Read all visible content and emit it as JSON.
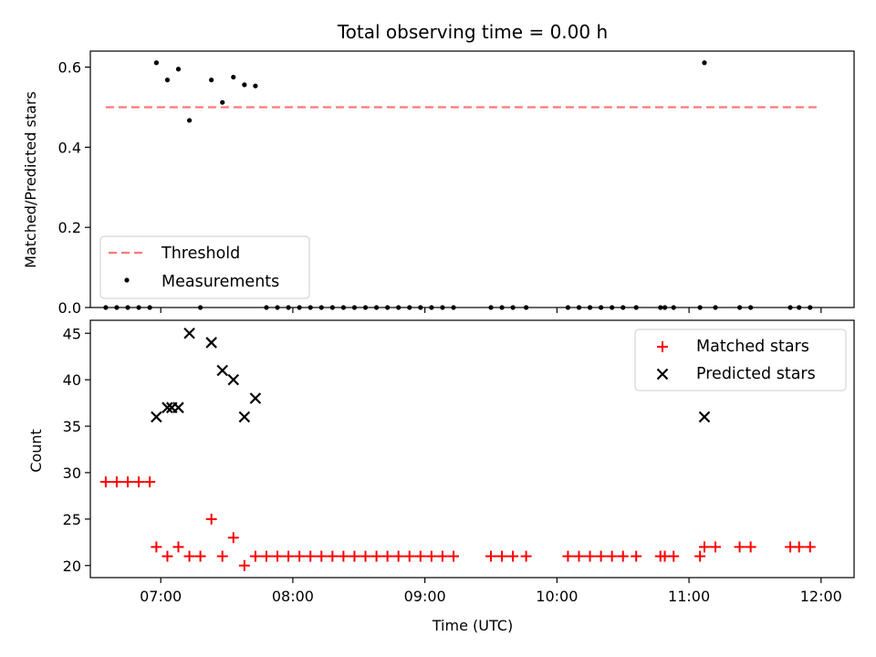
{
  "chart_data": [
    {
      "type": "scatter",
      "title": "Total observing time = 0.00 h",
      "xlabel": "",
      "ylabel": "Matched/Predicted stars",
      "xlim": [
        "06:28",
        "12:15"
      ],
      "ylim": [
        0,
        0.64
      ],
      "yticks": [
        0.0,
        0.2,
        0.4,
        0.6
      ],
      "ytick_labels": [
        "0.0",
        "0.2",
        "0.4",
        "0.6"
      ],
      "legend_position": "lower-left",
      "threshold": {
        "name": "Threshold",
        "value": 0.5,
        "x_start": "06:35",
        "x_end": "12:00",
        "color": "#ff7777",
        "style": "dashed"
      },
      "series": [
        {
          "name": "Measurements",
          "color": "#000000",
          "marker": "dot",
          "points": [
            {
              "x": "06:35",
              "y": 0.0
            },
            {
              "x": "06:40",
              "y": 0.0
            },
            {
              "x": "06:45",
              "y": 0.0
            },
            {
              "x": "06:50",
              "y": 0.0
            },
            {
              "x": "06:55",
              "y": 0.0
            },
            {
              "x": "06:58",
              "y": 0.611
            },
            {
              "x": "07:03",
              "y": 0.568
            },
            {
              "x": "07:08",
              "y": 0.595
            },
            {
              "x": "07:13",
              "y": 0.467
            },
            {
              "x": "07:18",
              "y": 0.0
            },
            {
              "x": "07:23",
              "y": 0.568
            },
            {
              "x": "07:28",
              "y": 0.512
            },
            {
              "x": "07:33",
              "y": 0.575
            },
            {
              "x": "07:38",
              "y": 0.556
            },
            {
              "x": "07:43",
              "y": 0.553
            },
            {
              "x": "07:48",
              "y": 0.0
            },
            {
              "x": "07:53",
              "y": 0.0
            },
            {
              "x": "07:58",
              "y": 0.0
            },
            {
              "x": "08:03",
              "y": 0.0
            },
            {
              "x": "08:08",
              "y": 0.0
            },
            {
              "x": "08:13",
              "y": 0.0
            },
            {
              "x": "08:18",
              "y": 0.0
            },
            {
              "x": "08:23",
              "y": 0.0
            },
            {
              "x": "08:28",
              "y": 0.0
            },
            {
              "x": "08:33",
              "y": 0.0
            },
            {
              "x": "08:38",
              "y": 0.0
            },
            {
              "x": "08:43",
              "y": 0.0
            },
            {
              "x": "08:48",
              "y": 0.0
            },
            {
              "x": "08:53",
              "y": 0.0
            },
            {
              "x": "08:58",
              "y": 0.0
            },
            {
              "x": "09:03",
              "y": 0.0
            },
            {
              "x": "09:08",
              "y": 0.0
            },
            {
              "x": "09:13",
              "y": 0.0
            },
            {
              "x": "09:30",
              "y": 0.0
            },
            {
              "x": "09:35",
              "y": 0.0
            },
            {
              "x": "09:40",
              "y": 0.0
            },
            {
              "x": "09:46",
              "y": 0.0
            },
            {
              "x": "10:05",
              "y": 0.0
            },
            {
              "x": "10:10",
              "y": 0.0
            },
            {
              "x": "10:15",
              "y": 0.0
            },
            {
              "x": "10:20",
              "y": 0.0
            },
            {
              "x": "10:25",
              "y": 0.0
            },
            {
              "x": "10:30",
              "y": 0.0
            },
            {
              "x": "10:36",
              "y": 0.0
            },
            {
              "x": "10:47",
              "y": 0.0
            },
            {
              "x": "10:49",
              "y": 0.0
            },
            {
              "x": "10:53",
              "y": 0.0
            },
            {
              "x": "11:05",
              "y": 0.0
            },
            {
              "x": "11:07",
              "y": 0.611
            },
            {
              "x": "11:12",
              "y": 0.0
            },
            {
              "x": "11:23",
              "y": 0.0
            },
            {
              "x": "11:28",
              "y": 0.0
            },
            {
              "x": "11:46",
              "y": 0.0
            },
            {
              "x": "11:50",
              "y": 0.0
            },
            {
              "x": "11:55",
              "y": 0.0
            }
          ]
        }
      ]
    },
    {
      "type": "scatter",
      "title": "",
      "xlabel": "Time (UTC)",
      "ylabel": "Count",
      "xlim": [
        "06:28",
        "12:15"
      ],
      "ylim": [
        18.7,
        46.4
      ],
      "yticks": [
        20,
        25,
        30,
        35,
        40,
        45
      ],
      "ytick_labels": [
        "20",
        "25",
        "30",
        "35",
        "40",
        "45"
      ],
      "xticks": [
        "07:00",
        "08:00",
        "09:00",
        "10:00",
        "11:00",
        "12:00"
      ],
      "xtick_labels": [
        "07:00",
        "08:00",
        "09:00",
        "10:00",
        "11:00",
        "12:00"
      ],
      "legend_position": "upper-right",
      "series": [
        {
          "name": "Matched stars",
          "color": "#ff0000",
          "marker": "plus",
          "points": [
            {
              "x": "06:35",
              "y": 29
            },
            {
              "x": "06:40",
              "y": 29
            },
            {
              "x": "06:45",
              "y": 29
            },
            {
              "x": "06:50",
              "y": 29
            },
            {
              "x": "06:55",
              "y": 29
            },
            {
              "x": "06:58",
              "y": 22
            },
            {
              "x": "07:03",
              "y": 21
            },
            {
              "x": "07:08",
              "y": 22
            },
            {
              "x": "07:13",
              "y": 21
            },
            {
              "x": "07:18",
              "y": 21
            },
            {
              "x": "07:23",
              "y": 25
            },
            {
              "x": "07:28",
              "y": 21
            },
            {
              "x": "07:33",
              "y": 23
            },
            {
              "x": "07:38",
              "y": 20
            },
            {
              "x": "07:43",
              "y": 21
            },
            {
              "x": "07:48",
              "y": 21
            },
            {
              "x": "07:53",
              "y": 21
            },
            {
              "x": "07:58",
              "y": 21
            },
            {
              "x": "08:03",
              "y": 21
            },
            {
              "x": "08:08",
              "y": 21
            },
            {
              "x": "08:13",
              "y": 21
            },
            {
              "x": "08:18",
              "y": 21
            },
            {
              "x": "08:23",
              "y": 21
            },
            {
              "x": "08:28",
              "y": 21
            },
            {
              "x": "08:33",
              "y": 21
            },
            {
              "x": "08:38",
              "y": 21
            },
            {
              "x": "08:43",
              "y": 21
            },
            {
              "x": "08:48",
              "y": 21
            },
            {
              "x": "08:53",
              "y": 21
            },
            {
              "x": "08:58",
              "y": 21
            },
            {
              "x": "09:03",
              "y": 21
            },
            {
              "x": "09:08",
              "y": 21
            },
            {
              "x": "09:13",
              "y": 21
            },
            {
              "x": "09:30",
              "y": 21
            },
            {
              "x": "09:35",
              "y": 21
            },
            {
              "x": "09:40",
              "y": 21
            },
            {
              "x": "09:46",
              "y": 21
            },
            {
              "x": "10:05",
              "y": 21
            },
            {
              "x": "10:10",
              "y": 21
            },
            {
              "x": "10:15",
              "y": 21
            },
            {
              "x": "10:20",
              "y": 21
            },
            {
              "x": "10:25",
              "y": 21
            },
            {
              "x": "10:30",
              "y": 21
            },
            {
              "x": "10:36",
              "y": 21
            },
            {
              "x": "10:47",
              "y": 21
            },
            {
              "x": "10:49",
              "y": 21
            },
            {
              "x": "10:53",
              "y": 21
            },
            {
              "x": "11:05",
              "y": 21
            },
            {
              "x": "11:07",
              "y": 22
            },
            {
              "x": "11:12",
              "y": 22
            },
            {
              "x": "11:23",
              "y": 22
            },
            {
              "x": "11:28",
              "y": 22
            },
            {
              "x": "11:46",
              "y": 22
            },
            {
              "x": "11:50",
              "y": 22
            },
            {
              "x": "11:55",
              "y": 22
            }
          ]
        },
        {
          "name": "Predicted stars",
          "color": "#000000",
          "marker": "x",
          "points": [
            {
              "x": "06:58",
              "y": 36
            },
            {
              "x": "07:03",
              "y": 37
            },
            {
              "x": "07:05",
              "y": 37
            },
            {
              "x": "07:08",
              "y": 37
            },
            {
              "x": "07:13",
              "y": 45
            },
            {
              "x": "07:23",
              "y": 44
            },
            {
              "x": "07:28",
              "y": 41
            },
            {
              "x": "07:33",
              "y": 40
            },
            {
              "x": "07:38",
              "y": 36
            },
            {
              "x": "07:43",
              "y": 38
            },
            {
              "x": "11:07",
              "y": 36
            }
          ]
        }
      ]
    }
  ]
}
